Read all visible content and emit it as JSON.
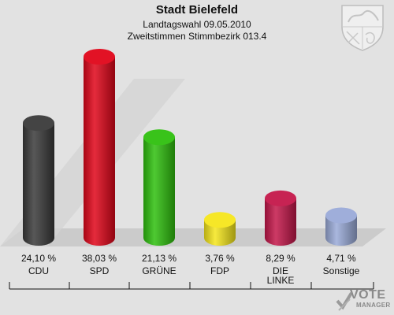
{
  "header": {
    "title": "Stadt Bielefeld",
    "subtitle": "Landtagswahl 09.05.2010",
    "district": "Zweitstimmen Stimmbezirk 013.4"
  },
  "logo": {
    "word1": "VOTE",
    "word2": "MANAGER"
  },
  "chart_data": {
    "type": "bar",
    "title": "Stadt Bielefeld",
    "categories": [
      "CDU",
      "SPD",
      "GRÜNE",
      "FDP",
      "DIE LINKE",
      "Sonstige"
    ],
    "category_lines": [
      [
        "CDU"
      ],
      [
        "SPD"
      ],
      [
        "GRÜNE"
      ],
      [
        "FDP"
      ],
      [
        "DIE",
        "LINKE"
      ],
      [
        "Sonstige"
      ]
    ],
    "values": [
      24.1,
      38.03,
      21.13,
      3.76,
      8.29,
      4.71
    ],
    "value_labels": [
      "24,10 %",
      "38,03 %",
      "21,13 %",
      "3,76 %",
      "8,29 %",
      "4,71 %"
    ],
    "colors": [
      "#3a3a3a",
      "#e0061a",
      "#2fc00e",
      "#f5e61c",
      "#c4174a",
      "#9aaad8"
    ],
    "unit": "%",
    "ylim": [
      0,
      38.03
    ],
    "grid": false,
    "legend": "none"
  }
}
